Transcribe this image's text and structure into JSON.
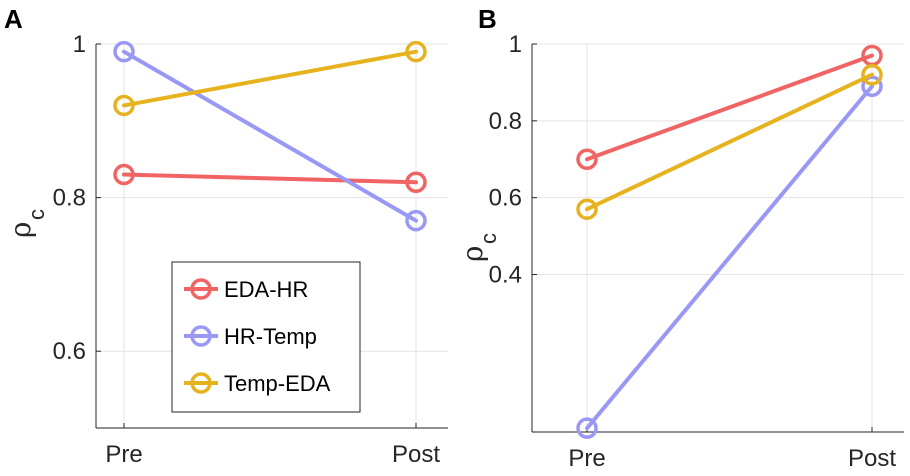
{
  "chart_data": [
    {
      "panel_label": "A",
      "type": "line",
      "categories": [
        "Pre",
        "Post"
      ],
      "ylabel": "ρ",
      "ylabel_subscript": "c",
      "ylim": [
        0.5,
        1.0
      ],
      "yticks": [
        0.6,
        0.8,
        1.0
      ],
      "ytick_labels": [
        "0.6",
        "0.8",
        "1"
      ],
      "grid": true,
      "legend": {
        "visible": true,
        "placement": "lower-center"
      },
      "series": [
        {
          "name": "EDA-HR",
          "color": "#f06464",
          "values": [
            0.83,
            0.82
          ]
        },
        {
          "name": "HR-Temp",
          "color": "#9999f5",
          "values": [
            0.99,
            0.77
          ]
        },
        {
          "name": "Temp-EDA",
          "color": "#e6b21e",
          "values": [
            0.92,
            0.99
          ]
        }
      ]
    },
    {
      "panel_label": "B",
      "type": "line",
      "categories": [
        "Pre",
        "Post"
      ],
      "ylabel": "ρ",
      "ylabel_subscript": "c",
      "ylim": [
        -0.01,
        1.0
      ],
      "yticks": [
        0.4,
        0.6,
        0.8,
        1.0
      ],
      "ytick_labels": [
        "0.4",
        "0.6",
        "0.8",
        "1"
      ],
      "grid": true,
      "legend": {
        "visible": false
      },
      "series": [
        {
          "name": "EDA-HR",
          "color": "#f06464",
          "values": [
            0.7,
            0.97
          ]
        },
        {
          "name": "HR-Temp",
          "color": "#9999f5",
          "values": [
            0.0,
            0.89
          ]
        },
        {
          "name": "Temp-EDA",
          "color": "#e6b21e",
          "values": [
            0.57,
            0.92
          ]
        }
      ]
    }
  ]
}
